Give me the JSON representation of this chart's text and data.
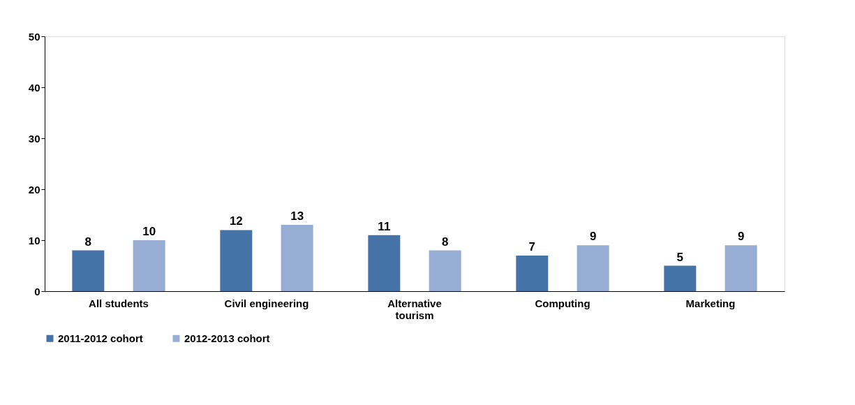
{
  "chart_data": {
    "type": "bar",
    "categories": [
      "All students",
      "Civil engineering",
      "Alternative tourism",
      "Computing",
      "Marketing"
    ],
    "series": [
      {
        "name": "2011-2012 cohort",
        "color": "#4673a7",
        "values": [
          8,
          12,
          11,
          7,
          5
        ]
      },
      {
        "name": "2012-2013 cohort",
        "color": "#97add3",
        "values": [
          10,
          13,
          8,
          9,
          9
        ]
      }
    ],
    "ylim": [
      0,
      50
    ],
    "yticks": [
      0,
      10,
      20,
      30,
      40,
      50
    ],
    "grid": false,
    "legend": "bottom",
    "data_labels": true
  }
}
